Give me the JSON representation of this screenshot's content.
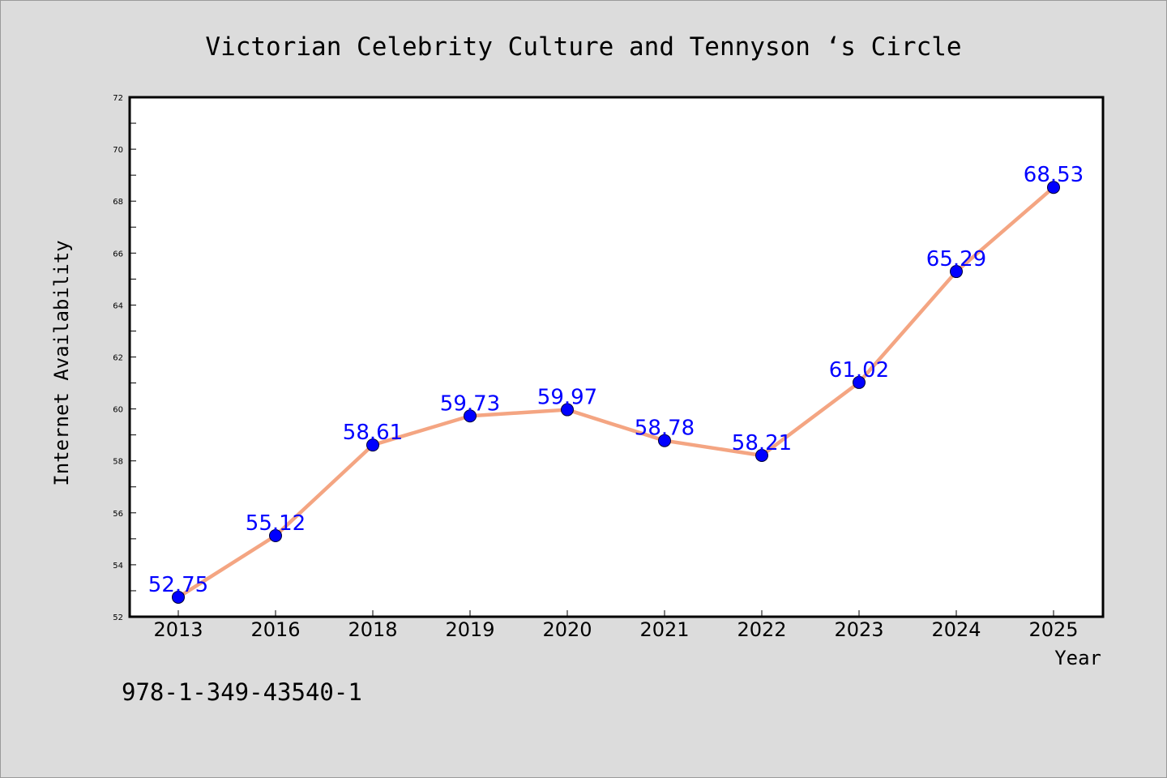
{
  "chart_data": {
    "type": "line",
    "title": "Victorian Celebrity Culture and Tennyson ‘s Circle",
    "xlabel": "Year",
    "ylabel": "Internet Availability",
    "categories": [
      "2013",
      "2016",
      "2018",
      "2019",
      "2020",
      "2021",
      "2022",
      "2023",
      "2024",
      "2025"
    ],
    "series": [
      {
        "values": [
          52.75,
          55.12,
          58.61,
          59.73,
          59.97,
          58.78,
          58.21,
          61.02,
          65.29,
          68.53
        ],
        "line_color": "#f4a582",
        "marker_color": "#0000ff",
        "label_color": "#0000ff"
      }
    ],
    "data_labels": [
      "52.75",
      "55.12",
      "58.61",
      "59.73",
      "59.97",
      "58.78",
      "58.21",
      "61.02",
      "65.29",
      "68.53"
    ],
    "ylim": [
      52,
      72
    ],
    "y_ticks": [
      "52",
      "54",
      "56",
      "58",
      "60",
      "62",
      "64",
      "66",
      "68",
      "70",
      "72"
    ],
    "grid": false,
    "background": "#dcdcdc",
    "plot_background": "#ffffff"
  },
  "footer": {
    "isbn": "978-1-349-43540-1"
  }
}
